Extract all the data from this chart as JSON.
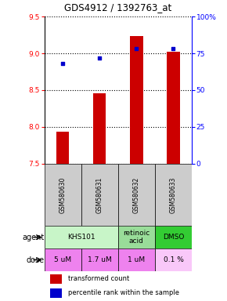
{
  "title": "GDS4912 / 1392763_at",
  "samples": [
    "GSM580630",
    "GSM580631",
    "GSM580632",
    "GSM580633"
  ],
  "bar_values": [
    7.93,
    8.46,
    9.23,
    9.02
  ],
  "bar_bottom": 7.5,
  "dot_values": [
    68,
    72,
    78,
    78
  ],
  "ylim_left": [
    7.5,
    9.5
  ],
  "ylim_right": [
    0,
    100
  ],
  "yticks_left": [
    7.5,
    8.0,
    8.5,
    9.0,
    9.5
  ],
  "yticks_right": [
    0,
    25,
    50,
    75,
    100
  ],
  "ytick_labels_right": [
    "0",
    "25",
    "50",
    "75",
    "100%"
  ],
  "bar_color": "#cc0000",
  "dot_color": "#0000cc",
  "agent_groups": [
    {
      "cols": [
        0,
        1
      ],
      "label": "KHS101",
      "color": "#c8f5c8"
    },
    {
      "cols": [
        2
      ],
      "label": "retinoic\nacid",
      "color": "#99dd99"
    },
    {
      "cols": [
        3
      ],
      "label": "DMSO",
      "color": "#33cc33"
    }
  ],
  "dose_labels": [
    "5 uM",
    "1.7 uM",
    "1 uM",
    "0.1 %"
  ],
  "dose_colors": [
    "#ee82ee",
    "#ee82ee",
    "#ee82ee",
    "#f9c8f9"
  ],
  "sample_bg_color": "#cccccc",
  "legend_bar_label": "transformed count",
  "legend_dot_label": "percentile rank within the sample"
}
